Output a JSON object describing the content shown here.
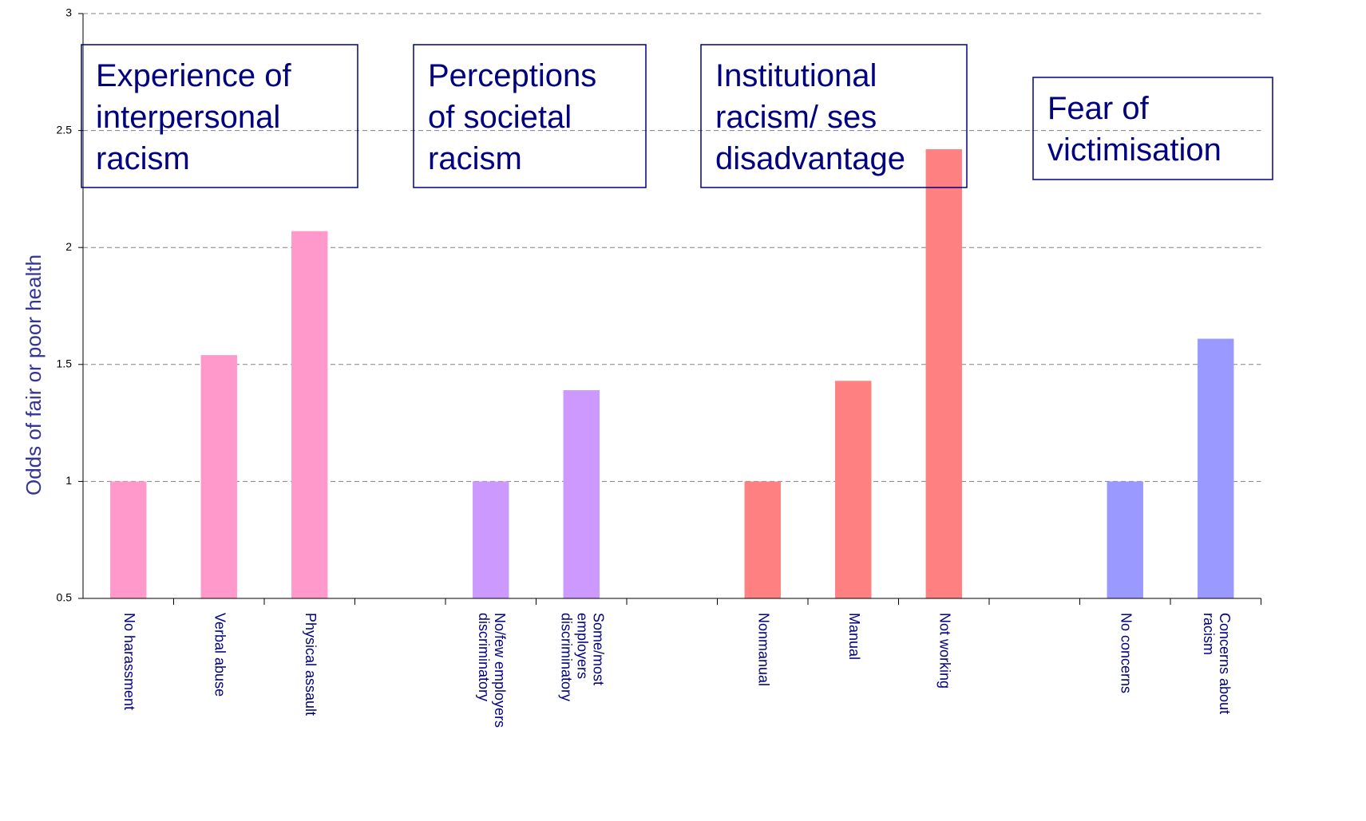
{
  "chart_data": {
    "type": "bar",
    "y_label": "Odds of fair or poor health",
    "categories": [
      "No harassment",
      "Verbal abuse",
      "Physical assault",
      null,
      "No/few employers\ndiscriminatory",
      "Some/most\nemployers\ndiscriminatory",
      null,
      "Nonmanual",
      "Manual",
      "Not working",
      null,
      "No concerns",
      "Concerns about\nracism"
    ],
    "values": [
      1,
      1.54,
      2.07,
      null,
      1,
      1.39,
      null,
      1,
      1.43,
      2.42,
      null,
      1,
      1.61
    ],
    "colors": [
      "#ff99cc",
      "#ff99cc",
      "#ff99cc",
      null,
      "#cc99ff",
      "#cc99ff",
      null,
      "#ff8080",
      "#ff8080",
      "#ff8080",
      null,
      "#9999ff",
      "#9999ff"
    ],
    "ylim": [
      0.5,
      3
    ],
    "yticks": [
      0.5,
      1,
      1.5,
      2,
      2.5,
      3
    ],
    "grid": true,
    "annotations": [
      {
        "lines": [
          "Experience of",
          "interpersonal",
          "racism"
        ]
      },
      {
        "lines": [
          "Perceptions",
          "of societal",
          "racism"
        ]
      },
      {
        "lines": [
          "Institutional",
          "racism/ ses",
          "disadvantage"
        ]
      },
      {
        "lines": [
          "Fear of",
          "victimisation"
        ]
      }
    ]
  }
}
